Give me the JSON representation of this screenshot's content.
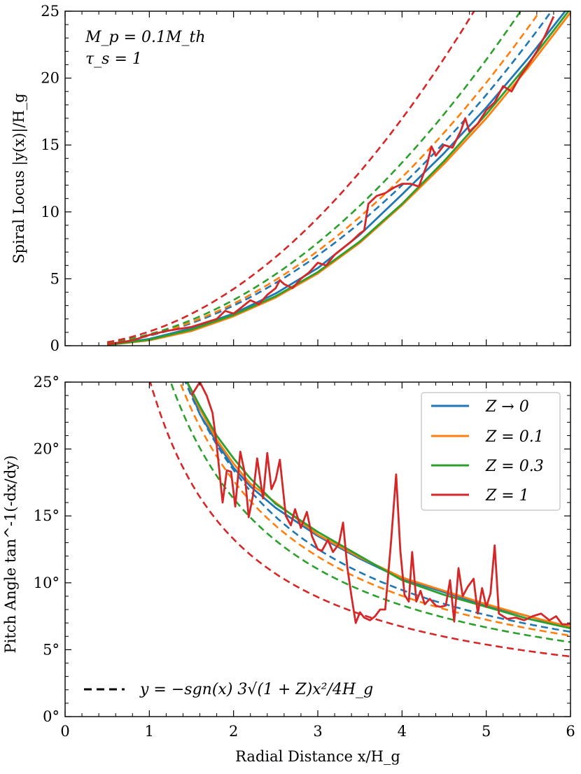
{
  "chart_data": [
    {
      "type": "line",
      "panel": "top",
      "title": "",
      "xlabel": "",
      "ylabel": "Spiral Locus |y(x)|/H_g",
      "xlim": [
        0,
        6
      ],
      "ylim": [
        0,
        25
      ],
      "xticks": [
        "0",
        "1",
        "2",
        "3",
        "4",
        "5",
        "6"
      ],
      "yticks": [
        "0",
        "5",
        "10",
        "15",
        "20",
        "25"
      ],
      "annotations": [
        "M_p = 0.1M_th",
        "τ_s = 1"
      ],
      "colors": {
        "Z0": "#1f77b4",
        "Z01": "#ff7f0e",
        "Z03": "#2ca02c",
        "Z1": "#d62728"
      },
      "series": [
        {
          "name": "Z → 0",
          "style": "solid",
          "color": "#1f77b4",
          "x": [
            0.5,
            1.0,
            1.5,
            2.0,
            2.5,
            3.0,
            3.5,
            4.0,
            4.5,
            5.0,
            5.5,
            6.0
          ],
          "y": [
            0.08,
            0.5,
            1.3,
            2.4,
            3.9,
            5.8,
            8.3,
            11.3,
            14.4,
            17.8,
            21.5,
            25.5
          ]
        },
        {
          "name": "Z = 0.1",
          "style": "solid",
          "color": "#ff7f0e",
          "x": [
            0.5,
            1.0,
            1.5,
            2.0,
            2.5,
            3.0,
            3.5,
            4.0,
            4.5,
            5.0,
            5.5,
            6.0
          ],
          "y": [
            0.05,
            0.4,
            1.1,
            2.2,
            3.6,
            5.4,
            7.7,
            10.5,
            13.6,
            17.0,
            20.8,
            24.9
          ]
        },
        {
          "name": "Z = 0.3",
          "style": "solid",
          "color": "#2ca02c",
          "x": [
            0.5,
            1.0,
            1.5,
            2.0,
            2.5,
            3.0,
            3.5,
            4.0,
            4.5,
            5.0,
            5.5,
            6.0
          ],
          "y": [
            0.05,
            0.45,
            1.2,
            2.3,
            3.7,
            5.5,
            7.8,
            10.6,
            13.8,
            17.3,
            21.1,
            25.2
          ]
        },
        {
          "name": "Z = 1",
          "style": "solid",
          "color": "#d62728",
          "x": [
            0.5,
            0.8,
            1.0,
            1.2,
            1.5,
            1.7,
            1.8,
            1.9,
            2.0,
            2.1,
            2.2,
            2.3,
            2.4,
            2.5,
            2.55,
            2.6,
            2.7,
            2.8,
            2.9,
            3.0,
            3.1,
            3.2,
            3.3,
            3.4,
            3.5,
            3.55,
            3.6,
            3.7,
            3.8,
            3.9,
            4.0,
            4.1,
            4.2,
            4.3,
            4.35,
            4.4,
            4.5,
            4.6,
            4.7,
            4.75,
            4.8,
            4.9,
            5.0,
            5.1,
            5.2,
            5.3,
            5.4,
            5.5,
            5.6,
            5.7,
            5.8
          ],
          "y": [
            0.1,
            0.4,
            0.8,
            1.1,
            1.4,
            1.8,
            2.0,
            2.6,
            2.4,
            2.9,
            3.4,
            3.1,
            3.8,
            4.3,
            4.9,
            4.6,
            4.3,
            5.0,
            5.5,
            6.2,
            6.0,
            6.8,
            7.3,
            7.8,
            8.4,
            8.6,
            10.6,
            11.2,
            11.4,
            11.8,
            12.1,
            12.1,
            11.9,
            13.6,
            14.9,
            14.2,
            15.0,
            14.8,
            16.1,
            17.0,
            16.0,
            16.6,
            17.6,
            18.2,
            19.4,
            19.0,
            20.1,
            21.0,
            22.0,
            23.2,
            24.6
          ]
        },
        {
          "name": "Z → 0 (analytic)",
          "style": "dashed",
          "color": "#1f77b4",
          "formula": "y = 0.75·sqrt(1+Z)·x², Z = 0"
        },
        {
          "name": "Z = 0.1 (analytic)",
          "style": "dashed",
          "color": "#ff7f0e",
          "formula": "y = 0.75·sqrt(1+Z)·x², Z = 0.1"
        },
        {
          "name": "Z = 0.3 (analytic)",
          "style": "dashed",
          "color": "#2ca02c",
          "formula": "y = 0.75·sqrt(1+Z)·x², Z = 0.3"
        },
        {
          "name": "Z = 1 (analytic)",
          "style": "dashed",
          "color": "#d62728",
          "formula": "y = 0.75·sqrt(1+Z)·x², Z = 1"
        }
      ]
    },
    {
      "type": "line",
      "panel": "bottom",
      "title": "",
      "xlabel": "Radial Distance x/H_g",
      "ylabel": "Pitch Angle tan^-1(-dx/dy)",
      "xlim": [
        0,
        6
      ],
      "ylim": [
        0,
        25
      ],
      "xticks": [
        "0",
        "1",
        "2",
        "3",
        "4",
        "5",
        "6"
      ],
      "yticks": [
        "0°",
        "5°",
        "10°",
        "15°",
        "20°",
        "25°"
      ],
      "legend": {
        "placement": "top-right",
        "entries": [
          "Z → 0",
          "Z = 0.1",
          "Z = 0.3",
          "Z = 1"
        ]
      },
      "dashed_legend": "y = −sgn(x) 3√(1 + Z)x²/4H_g",
      "series": [
        {
          "name": "Z → 0",
          "style": "solid",
          "color": "#1f77b4",
          "x": [
            1.45,
            1.6,
            1.8,
            2.0,
            2.2,
            2.5,
            3.0,
            3.5,
            4.0,
            4.5,
            5.0,
            5.5,
            6.0
          ],
          "y": [
            25.0,
            22.6,
            20.5,
            18.6,
            17.2,
            15.6,
            13.5,
            11.8,
            10.3,
            9.3,
            8.3,
            7.5,
            6.6
          ]
        },
        {
          "name": "Z = 0.1",
          "style": "solid",
          "color": "#ff7f0e",
          "x": [
            1.45,
            1.6,
            1.8,
            2.0,
            2.2,
            2.5,
            3.0,
            3.5,
            4.0,
            4.5,
            5.0,
            5.5,
            6.0
          ],
          "y": [
            25.0,
            23.0,
            20.7,
            18.9,
            17.4,
            16.0,
            13.6,
            11.9,
            10.4,
            9.4,
            8.4,
            7.5,
            6.7
          ]
        },
        {
          "name": "Z = 0.3",
          "style": "solid",
          "color": "#2ca02c",
          "x": [
            1.45,
            1.6,
            1.8,
            2.0,
            2.2,
            2.5,
            3.0,
            3.5,
            4.0,
            4.5,
            5.0,
            5.5,
            6.0
          ],
          "y": [
            25.0,
            23.2,
            21.0,
            19.3,
            17.8,
            15.9,
            13.8,
            12.0,
            10.2,
            9.1,
            8.2,
            7.3,
            6.6
          ]
        },
        {
          "name": "Z = 1",
          "style": "solid",
          "color": "#d62728",
          "x": [
            1.5,
            1.6,
            1.68,
            1.75,
            1.8,
            1.87,
            1.92,
            1.97,
            2.02,
            2.08,
            2.13,
            2.18,
            2.23,
            2.28,
            2.35,
            2.4,
            2.45,
            2.5,
            2.55,
            2.62,
            2.68,
            2.73,
            2.8,
            2.87,
            2.93,
            3.0,
            3.05,
            3.12,
            3.18,
            3.25,
            3.3,
            3.35,
            3.4,
            3.45,
            3.5,
            3.55,
            3.62,
            3.68,
            3.74,
            3.8,
            3.87,
            3.93,
            3.98,
            4.03,
            4.08,
            4.12,
            4.17,
            4.22,
            4.27,
            4.33,
            4.4,
            4.45,
            4.52,
            4.57,
            4.62,
            4.67,
            4.72,
            4.78,
            4.85,
            4.9,
            4.95,
            5.0,
            5.05,
            5.1,
            5.15,
            5.25,
            5.35,
            5.45,
            5.55,
            5.65,
            5.75,
            5.83,
            5.9,
            6.0
          ],
          "y": [
            24.0,
            25.0,
            24.0,
            22.7,
            20.3,
            16.0,
            18.4,
            18.3,
            15.7,
            19.8,
            18.3,
            14.9,
            16.5,
            19.3,
            16.3,
            19.7,
            17.0,
            17.7,
            19.2,
            15.0,
            14.3,
            15.5,
            14.1,
            15.3,
            13.5,
            12.5,
            12.4,
            13.2,
            12.3,
            12.9,
            14.5,
            11.2,
            9.0,
            7.0,
            7.8,
            7.4,
            7.2,
            7.5,
            8.0,
            8.0,
            13.1,
            18.1,
            12.4,
            9.1,
            8.6,
            12.3,
            8.6,
            9.4,
            8.4,
            8.8,
            8.3,
            8.2,
            8.3,
            10.2,
            7.1,
            11.1,
            9.0,
            9.7,
            10.3,
            7.7,
            9.6,
            8.2,
            9.2,
            12.8,
            7.7,
            7.3,
            7.4,
            7.2,
            7.5,
            7.7,
            7.2,
            7.5,
            6.9,
            6.9
          ]
        },
        {
          "name": "Z → 0 (analytic)",
          "style": "dashed",
          "color": "#1f77b4",
          "formula": "θ = atan(1/(1.5·sqrt(1+Z)·x)), Z = 0"
        },
        {
          "name": "Z = 0.1 (analytic)",
          "style": "dashed",
          "color": "#ff7f0e",
          "formula": "θ = atan(1/(1.5·sqrt(1+Z)·x)), Z = 0.1"
        },
        {
          "name": "Z = 0.3 (analytic)",
          "style": "dashed",
          "color": "#2ca02c",
          "formula": "θ = atan(1/(1.5·sqrt(1+Z)·x)), Z = 0.3"
        },
        {
          "name": "Z = 1 (analytic)",
          "style": "dashed",
          "color": "#d62728",
          "formula": "θ = atan(1/(1.5·sqrt(1+Z)·x)), Z = 1"
        }
      ]
    }
  ]
}
